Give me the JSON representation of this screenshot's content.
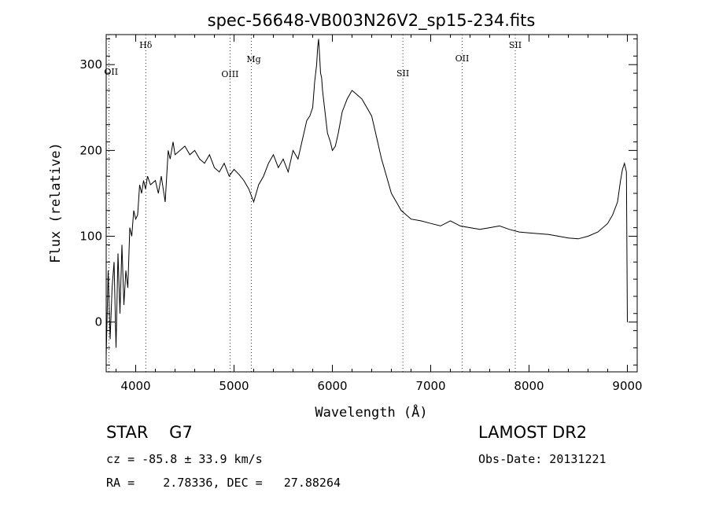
{
  "chart_data": {
    "type": "line",
    "title": "spec-56648-VB003N26V2_sp15-234.fits",
    "xlabel": "Wavelength (Å)",
    "ylabel": "Flux (relative)",
    "xlim": [
      3700,
      9100
    ],
    "ylim": [
      -58,
      335
    ],
    "x_ticks": [
      4000,
      5000,
      6000,
      7000,
      8000,
      9000
    ],
    "y_ticks": [
      0,
      100,
      200,
      300
    ],
    "grid": false,
    "lines": [
      {
        "name": "OII",
        "x": 3727
      },
      {
        "name": "Hδ",
        "x": 4102
      },
      {
        "name": "OIII",
        "x": 4959
      },
      {
        "name": "Mg",
        "x": 5175
      },
      {
        "name": "SII",
        "x": 6717
      },
      {
        "name": "OII",
        "x": 7320
      },
      {
        "name": "SII",
        "x": 7860
      }
    ],
    "series": [
      {
        "x": [
          3700,
          3720,
          3740,
          3760,
          3780,
          3800,
          3820,
          3840,
          3860,
          3880,
          3900,
          3920,
          3940,
          3960,
          3980,
          4000,
          4020,
          4040,
          4060,
          4080,
          4100,
          4120,
          4150,
          4200,
          4230,
          4260,
          4300,
          4330,
          4350,
          4380,
          4400,
          4450,
          4500,
          4550,
          4600,
          4650,
          4700,
          4750,
          4800,
          4850,
          4900,
          4950,
          5000,
          5050,
          5100,
          5150,
          5200,
          5250,
          5300,
          5350,
          5400,
          5450,
          5500,
          5550,
          5600,
          5650,
          5700,
          5740,
          5770,
          5800,
          5820,
          5840,
          5850,
          5860,
          5870,
          5880,
          5890,
          5900,
          5920,
          5950,
          5980,
          6000,
          6030,
          6060,
          6100,
          6150,
          6200,
          6250,
          6300,
          6350,
          6400,
          6450,
          6500,
          6550,
          6600,
          6650,
          6700,
          6750,
          6800,
          6900,
          7000,
          7100,
          7200,
          7300,
          7400,
          7500,
          7600,
          7700,
          7800,
          7900,
          8000,
          8100,
          8200,
          8300,
          8400,
          8500,
          8600,
          8700,
          8800,
          8850,
          8900,
          8930,
          8950,
          8970,
          8990,
          9000
        ],
        "y": [
          -40,
          60,
          -20,
          40,
          70,
          -30,
          80,
          10,
          90,
          20,
          60,
          40,
          110,
          100,
          130,
          120,
          125,
          160,
          150,
          165,
          155,
          170,
          160,
          165,
          150,
          170,
          140,
          200,
          190,
          210,
          195,
          200,
          205,
          195,
          200,
          190,
          185,
          195,
          180,
          175,
          185,
          170,
          178,
          172,
          165,
          155,
          140,
          160,
          170,
          185,
          195,
          180,
          190,
          175,
          200,
          190,
          215,
          235,
          240,
          250,
          280,
          300,
          320,
          330,
          310,
          290,
          285,
          270,
          250,
          220,
          210,
          200,
          205,
          220,
          245,
          260,
          270,
          265,
          260,
          250,
          240,
          215,
          190,
          170,
          150,
          140,
          130,
          125,
          120,
          118,
          115,
          112,
          118,
          112,
          110,
          108,
          110,
          112,
          108,
          105,
          104,
          103,
          102,
          100,
          98,
          97,
          100,
          105,
          115,
          125,
          140,
          165,
          178,
          185,
          175,
          0
        ]
      }
    ]
  },
  "info": {
    "object": "STAR    G7",
    "survey": "LAMOST DR2",
    "cz": "cz = -85.8 ± 33.9 km/s",
    "obs_date": "Obs-Date: 20131221",
    "radec": "RA =    2.78336, DEC =   27.88264"
  }
}
